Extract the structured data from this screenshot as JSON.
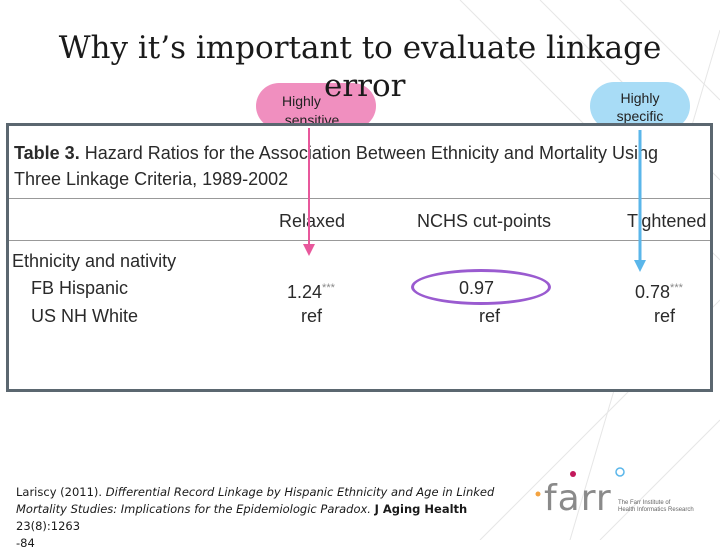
{
  "slide": {
    "title_line1": "Why it’s important to evaluate linkage",
    "title_line2": "error"
  },
  "callouts": {
    "sensitive": {
      "line1": "Highly",
      "line2": "sensitive",
      "color": "#f08fbf"
    },
    "specific": {
      "line1": "Highly",
      "line2": "specific",
      "color": "#a8dcf6"
    }
  },
  "table": {
    "label": "Table 3.",
    "caption_rest": "Hazard Ratios for the Association Between Ethnicity and Mortality Using",
    "caption_line2": "Three Linkage Criteria, 1989-2002",
    "columns": [
      "Relaxed",
      "NCHS cut-points",
      "Tightened"
    ],
    "section": "Ethnicity and nativity",
    "rows": [
      {
        "label": "FB Hispanic",
        "relaxed": "1.24",
        "relaxed_sig": "***",
        "nchs": "0.97",
        "tightened": "0.78",
        "tightened_sig": "***"
      },
      {
        "label": "US NH White",
        "relaxed": "ref",
        "relaxed_sig": "",
        "nchs": "ref",
        "tightened": "ref",
        "tightened_sig": ""
      }
    ],
    "highlight_color": "#9a5bd0"
  },
  "citation": {
    "authors_year": "Lariscy (2011).",
    "title": "Differential Record Linkage by Hispanic Ethnicity and Age in Linked Mortality Studies: Implications for the Epidemiologic Paradox.",
    "journal": "J Aging Health",
    "volume": "23(8):1263",
    "pages": "-84"
  },
  "logo": {
    "wordmark": "farr",
    "tagline_line1": "The Farr Institute of",
    "tagline_line2": "Health Informatics Research"
  }
}
